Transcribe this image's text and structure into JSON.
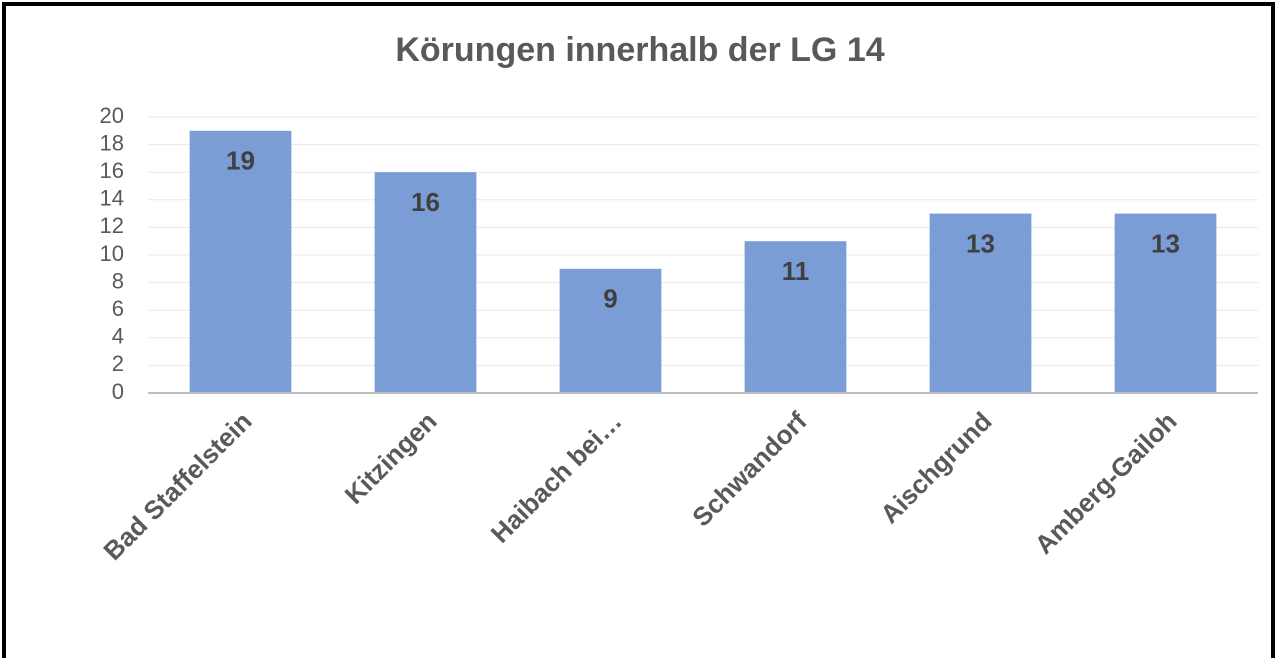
{
  "chart_data": {
    "type": "bar",
    "title": "Körungen innerhalb der LG 14",
    "categories": [
      "Bad Staffelstein",
      "Kitzingen",
      "Haibach bei…",
      "Schwandorf",
      "Aischgrund",
      "Amberg-Gailoh"
    ],
    "values": [
      19,
      16,
      9,
      11,
      13,
      13
    ],
    "color": "#7b9dd6",
    "ylim": [
      0,
      20
    ],
    "yticks": [
      0,
      2,
      4,
      6,
      8,
      10,
      12,
      14,
      16,
      18,
      20
    ],
    "grid": true
  }
}
